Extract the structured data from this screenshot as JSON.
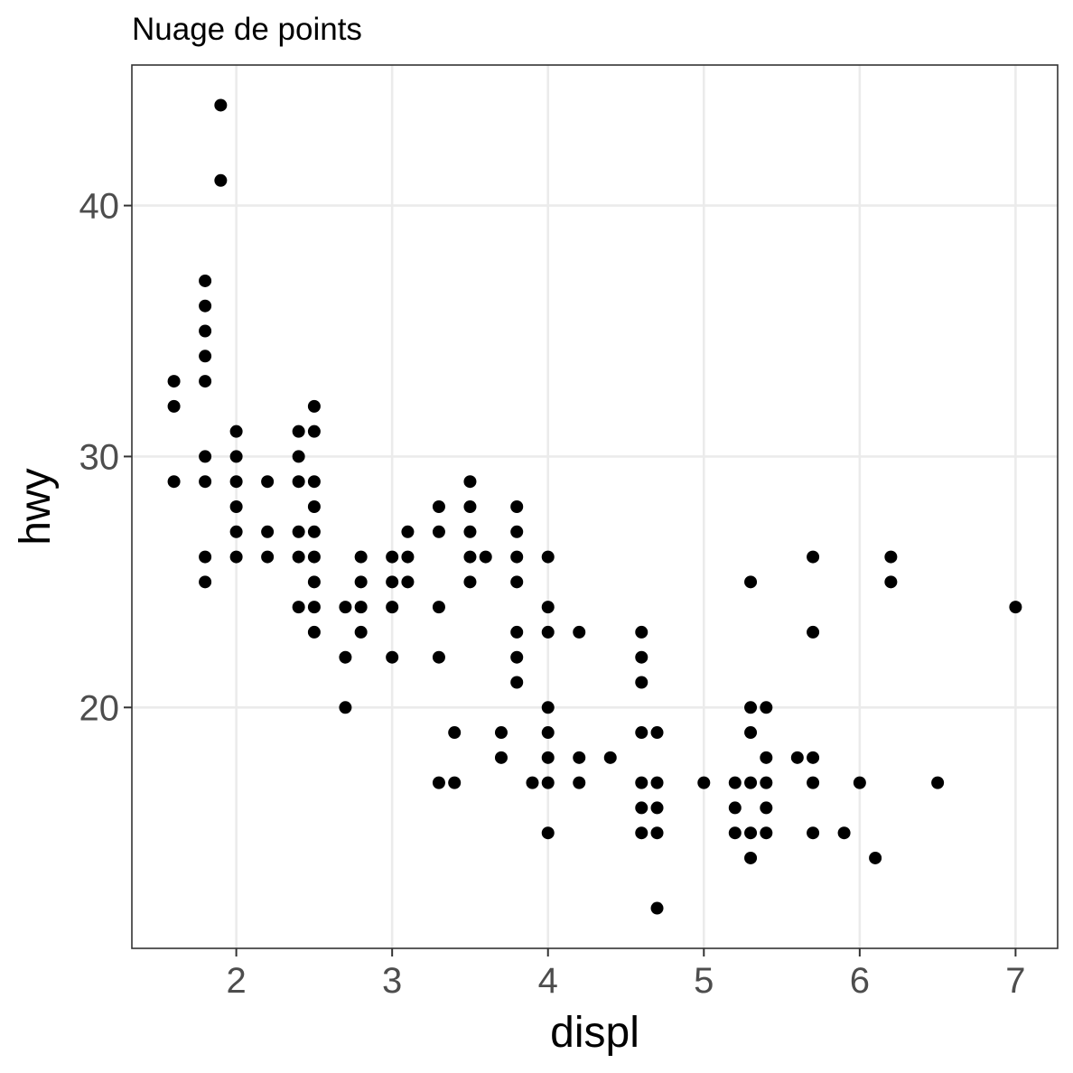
{
  "chart_data": {
    "type": "scatter",
    "title": "Nuage de points",
    "xlabel": "displ",
    "ylabel": "hwy",
    "xlim": [
      1.33,
      7.27
    ],
    "ylim": [
      10.4,
      45.6
    ],
    "xticks": [
      2,
      3,
      4,
      5,
      6,
      7
    ],
    "yticks": [
      20,
      30,
      40
    ],
    "grid": true,
    "colors": {
      "points": "#000000",
      "grid": "#ebebeb",
      "border": "#333333",
      "tick_text": "#4d4d4d"
    },
    "points": [
      [
        1.6,
        33
      ],
      [
        1.6,
        32
      ],
      [
        1.6,
        29
      ],
      [
        1.8,
        37
      ],
      [
        1.8,
        36
      ],
      [
        1.8,
        35
      ],
      [
        1.8,
        34
      ],
      [
        1.8,
        33
      ],
      [
        1.8,
        30
      ],
      [
        1.8,
        29
      ],
      [
        1.8,
        26
      ],
      [
        1.8,
        25
      ],
      [
        1.9,
        44
      ],
      [
        1.9,
        41
      ],
      [
        2.0,
        31
      ],
      [
        2.0,
        30
      ],
      [
        2.0,
        29
      ],
      [
        2.0,
        28
      ],
      [
        2.0,
        27
      ],
      [
        2.0,
        26
      ],
      [
        2.2,
        29
      ],
      [
        2.2,
        27
      ],
      [
        2.2,
        26
      ],
      [
        2.4,
        31
      ],
      [
        2.4,
        30
      ],
      [
        2.4,
        29
      ],
      [
        2.4,
        27
      ],
      [
        2.4,
        26
      ],
      [
        2.4,
        24
      ],
      [
        2.5,
        32
      ],
      [
        2.5,
        31
      ],
      [
        2.5,
        29
      ],
      [
        2.5,
        28
      ],
      [
        2.5,
        27
      ],
      [
        2.5,
        26
      ],
      [
        2.5,
        25
      ],
      [
        2.5,
        24
      ],
      [
        2.5,
        23
      ],
      [
        2.7,
        24
      ],
      [
        2.7,
        22
      ],
      [
        2.7,
        20
      ],
      [
        2.8,
        26
      ],
      [
        2.8,
        25
      ],
      [
        2.8,
        24
      ],
      [
        2.8,
        23
      ],
      [
        3.0,
        26
      ],
      [
        3.0,
        25
      ],
      [
        3.0,
        24
      ],
      [
        3.0,
        22
      ],
      [
        3.1,
        27
      ],
      [
        3.1,
        26
      ],
      [
        3.1,
        25
      ],
      [
        3.3,
        28
      ],
      [
        3.3,
        27
      ],
      [
        3.3,
        24
      ],
      [
        3.3,
        22
      ],
      [
        3.3,
        17
      ],
      [
        3.4,
        19
      ],
      [
        3.4,
        17
      ],
      [
        3.5,
        29
      ],
      [
        3.5,
        28
      ],
      [
        3.5,
        27
      ],
      [
        3.5,
        26
      ],
      [
        3.5,
        25
      ],
      [
        3.6,
        26
      ],
      [
        3.7,
        19
      ],
      [
        3.7,
        18
      ],
      [
        3.8,
        28
      ],
      [
        3.8,
        27
      ],
      [
        3.8,
        26
      ],
      [
        3.8,
        25
      ],
      [
        3.8,
        23
      ],
      [
        3.8,
        22
      ],
      [
        3.8,
        21
      ],
      [
        3.9,
        17
      ],
      [
        4.0,
        26
      ],
      [
        4.0,
        24
      ],
      [
        4.0,
        23
      ],
      [
        4.0,
        20
      ],
      [
        4.0,
        19
      ],
      [
        4.0,
        18
      ],
      [
        4.0,
        17
      ],
      [
        4.0,
        15
      ],
      [
        4.2,
        23
      ],
      [
        4.2,
        18
      ],
      [
        4.2,
        17
      ],
      [
        4.4,
        18
      ],
      [
        4.6,
        23
      ],
      [
        4.6,
        22
      ],
      [
        4.6,
        21
      ],
      [
        4.6,
        19
      ],
      [
        4.6,
        17
      ],
      [
        4.6,
        16
      ],
      [
        4.6,
        15
      ],
      [
        4.7,
        19
      ],
      [
        4.7,
        17
      ],
      [
        4.7,
        16
      ],
      [
        4.7,
        15
      ],
      [
        4.7,
        12
      ],
      [
        5.0,
        17
      ],
      [
        5.2,
        17
      ],
      [
        5.2,
        16
      ],
      [
        5.2,
        15
      ],
      [
        5.3,
        25
      ],
      [
        5.3,
        20
      ],
      [
        5.3,
        19
      ],
      [
        5.3,
        17
      ],
      [
        5.3,
        15
      ],
      [
        5.3,
        14
      ],
      [
        5.4,
        20
      ],
      [
        5.4,
        18
      ],
      [
        5.4,
        17
      ],
      [
        5.4,
        16
      ],
      [
        5.4,
        15
      ],
      [
        5.6,
        18
      ],
      [
        5.7,
        26
      ],
      [
        5.7,
        23
      ],
      [
        5.7,
        18
      ],
      [
        5.7,
        17
      ],
      [
        5.7,
        15
      ],
      [
        5.9,
        15
      ],
      [
        6.0,
        17
      ],
      [
        6.1,
        14
      ],
      [
        6.2,
        26
      ],
      [
        6.2,
        25
      ],
      [
        6.5,
        17
      ],
      [
        7.0,
        24
      ]
    ]
  }
}
